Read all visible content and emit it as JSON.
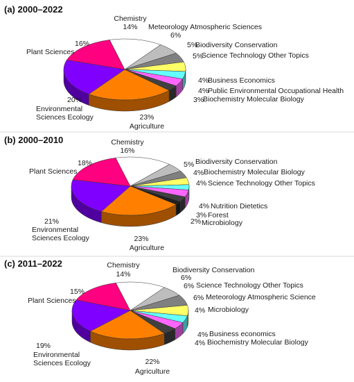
{
  "chart_data": [
    {
      "type": "pie",
      "title": "(a) 2000–2022",
      "slices": [
        {
          "label": "Chemistry",
          "value": 14,
          "value_label": "14%",
          "color": "#ffffff"
        },
        {
          "label": "Meteorology Atmospheric Sciences",
          "value": 6,
          "value_label": "6%",
          "color": "#bdbdbd"
        },
        {
          "label": "Biodiversity Conservation",
          "value": 5,
          "value_label": "5%",
          "color": "#808080"
        },
        {
          "label": "Science Technology Other Topics",
          "value": 5,
          "value_label": "5%",
          "color": "#ffff66"
        },
        {
          "label": "Business Economics",
          "value": 4,
          "value_label": "4%",
          "color": "#66ffff"
        },
        {
          "label": "Public Environmental Occupational Health",
          "value": 4,
          "value_label": "4%",
          "color": "#ff66ff"
        },
        {
          "label": "Biochemistry Molecular Biology",
          "value": 3,
          "value_label": "3%",
          "color": "#404040"
        },
        {
          "label": "Agriculture",
          "value": 23,
          "value_label": "23%",
          "color": "#ff8000"
        },
        {
          "label": "Environmental\nSciences Ecology",
          "value": 20,
          "value_label": "20%",
          "color": "#8000ff"
        },
        {
          "label": "Plant Sciences",
          "value": 16,
          "value_label": "16%",
          "color": "#ff0080"
        }
      ]
    },
    {
      "type": "pie",
      "title": "(b) 2000–2010",
      "slices": [
        {
          "label": "Chemistry",
          "value": 16,
          "value_label": "16%",
          "color": "#ffffff"
        },
        {
          "label": "Biodiversity Conservation",
          "value": 5,
          "value_label": "5%",
          "color": "#bdbdbd"
        },
        {
          "label": "Biochemistry Molecular Biology",
          "value": 4,
          "value_label": "4%",
          "color": "#808080"
        },
        {
          "label": "Science Technology Other Topics",
          "value": 4,
          "value_label": "4%",
          "color": "#ffff66"
        },
        {
          "label": "",
          "value": 3,
          "value_label": "",
          "color": "#66ffff"
        },
        {
          "label": "Nutrition Dietetics",
          "value": 4,
          "value_label": "4%",
          "color": "#ff66ff"
        },
        {
          "label": "Forest",
          "value": 3,
          "value_label": "3%",
          "color": "#404040"
        },
        {
          "label": "Microbiology",
          "value": 2,
          "value_label": "2%",
          "color": "#202020"
        },
        {
          "label": "Agriculture",
          "value": 23,
          "value_label": "23%",
          "color": "#ff8000"
        },
        {
          "label": "Environmental\nSciences Ecology",
          "value": 21,
          "value_label": "21%",
          "color": "#8000ff"
        },
        {
          "label": "Plant Sciences",
          "value": 18,
          "value_label": "18%",
          "color": "#ff0080"
        }
      ]
    },
    {
      "type": "pie",
      "title": "(c) 2011–2022",
      "slices": [
        {
          "label": "Chemistry",
          "value": 14,
          "value_label": "14%",
          "color": "#ffffff"
        },
        {
          "label": "Biodiversity Conservation",
          "value": 6,
          "value_label": "6%",
          "color": "#bdbdbd"
        },
        {
          "label": "Science Technology Other Topics",
          "value": 6,
          "value_label": "6%",
          "color": "#808080"
        },
        {
          "label": "Meteorology Atmospheric Science",
          "value": 6,
          "value_label": "6%",
          "color": "#ffff66"
        },
        {
          "label": "Microbiology",
          "value": 4,
          "value_label": "4%",
          "color": "#66ffff"
        },
        {
          "label": "Business economics",
          "value": 4,
          "value_label": "4%",
          "color": "#ff66ff"
        },
        {
          "label": "Biochemistry Molecular Biology",
          "value": 4,
          "value_label": "4%",
          "color": "#404040"
        },
        {
          "label": "Agriculture",
          "value": 22,
          "value_label": "22%",
          "color": "#ff8000"
        },
        {
          "label": "Environmental\nSciences Ecology",
          "value": 19,
          "value_label": "19%",
          "color": "#8000ff"
        },
        {
          "label": "Plant Sciences",
          "value": 15,
          "value_label": "15%",
          "color": "#ff0080"
        }
      ]
    }
  ]
}
